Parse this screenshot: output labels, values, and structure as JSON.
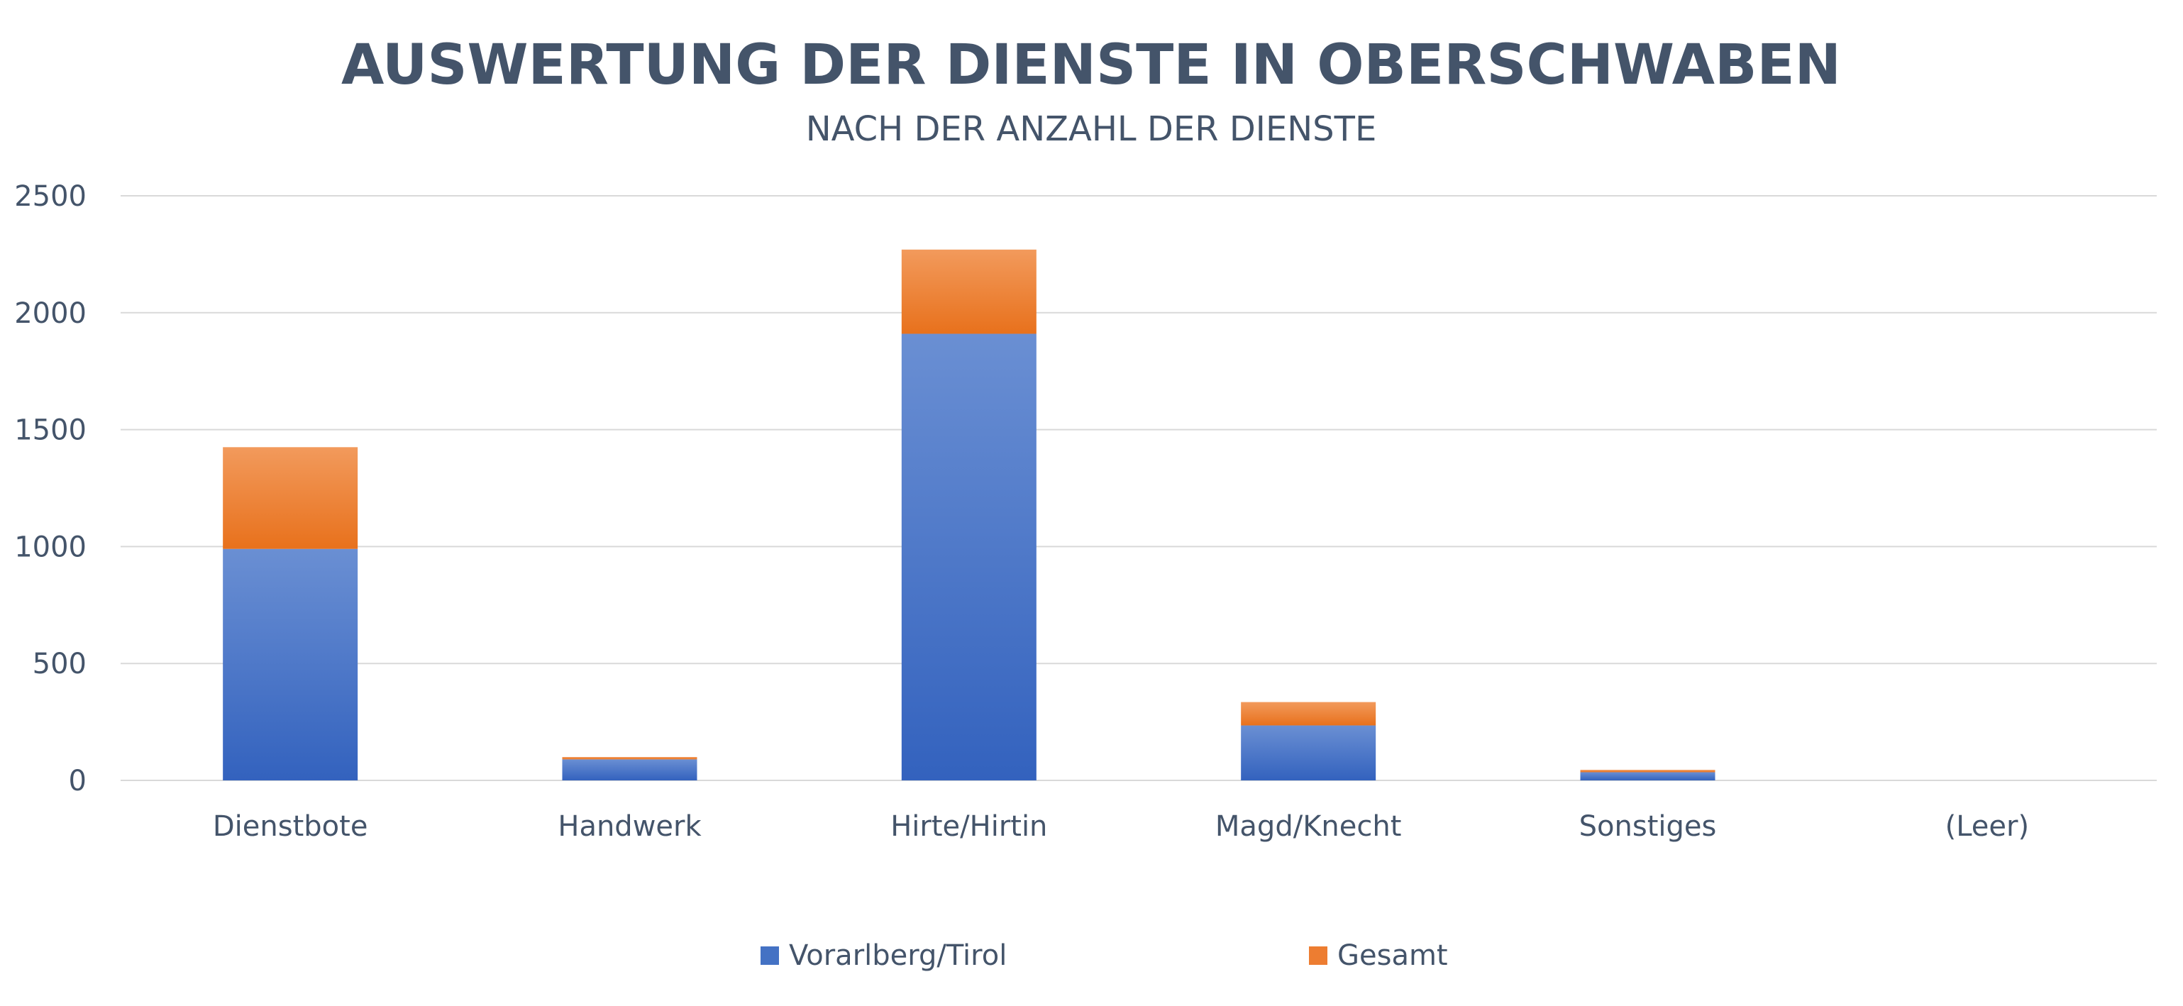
{
  "chart_data": {
    "type": "bar",
    "stacked": true,
    "title": "AUSWERTUNG DER DIENSTE IN OBERSCHWABEN",
    "subtitle": "NACH DER ANZAHL DER DIENSTE",
    "xlabel": "",
    "ylabel": "",
    "categories": [
      "Dienstbote",
      "Handwerk",
      "Hirte/Hirtin",
      "Magd/Knecht",
      "Sonstiges",
      "(Leer)"
    ],
    "series": [
      {
        "name": "Vorarlberg/Tirol",
        "values": [
          990,
          90,
          1910,
          235,
          35,
          0
        ],
        "color": "#4472c4"
      },
      {
        "name": "Gesamt",
        "values": [
          435,
          10,
          360,
          100,
          10,
          0
        ],
        "color": "#ed7d31"
      }
    ],
    "ylim": [
      0,
      2500
    ],
    "yticks": [
      0,
      500,
      1000,
      1500,
      2000,
      2500
    ],
    "grid": true,
    "legend_position": "bottom"
  }
}
